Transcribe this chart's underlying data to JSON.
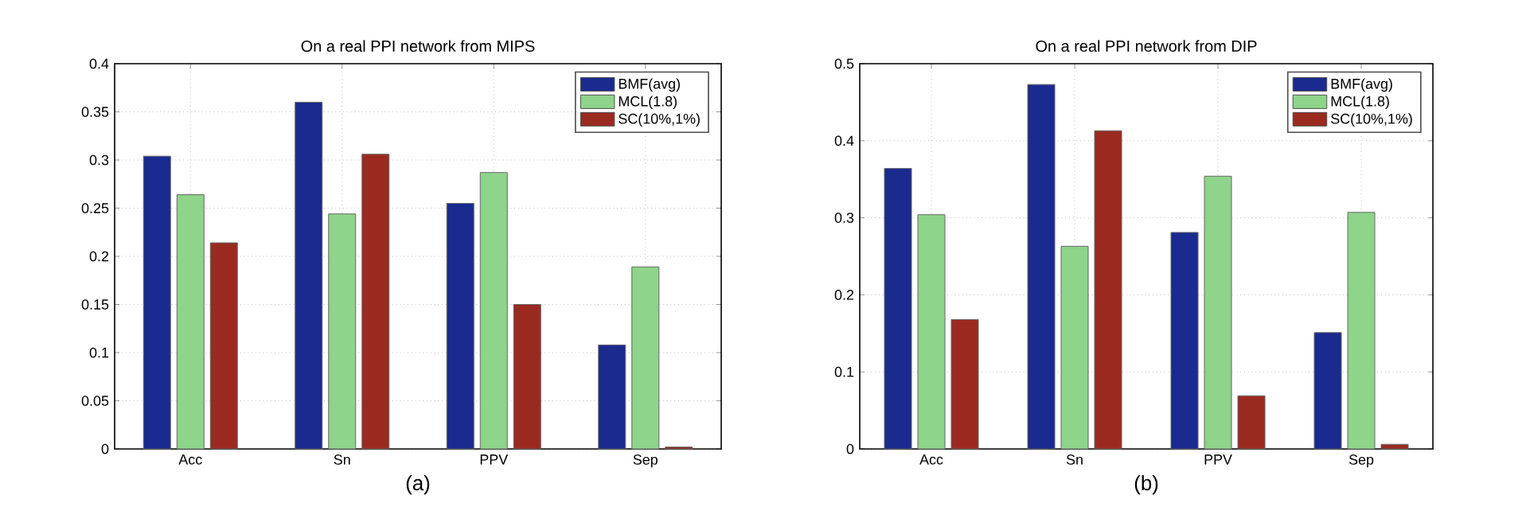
{
  "chart_data": [
    {
      "type": "bar",
      "title": "On a real PPI network from MIPS",
      "categories": [
        "Acc",
        "Sn",
        "PPV",
        "Sep"
      ],
      "series": [
        {
          "name": "BMF(avg)",
          "color": "#1b2a8e",
          "values": [
            0.304,
            0.36,
            0.255,
            0.108
          ]
        },
        {
          "name": "MCL(1.8)",
          "color": "#8ed48a",
          "values": [
            0.264,
            0.244,
            0.287,
            0.189
          ]
        },
        {
          "name": "SC(10%,1%)",
          "color": "#9a2a20",
          "values": [
            0.214,
            0.306,
            0.15,
            0.002
          ]
        }
      ],
      "ylim": [
        0,
        0.4
      ],
      "yticks": [
        0,
        0.05,
        0.1,
        0.15,
        0.2,
        0.25,
        0.3,
        0.35,
        0.4
      ],
      "grid": true,
      "legend": "top right",
      "annotations": [
        "(a)"
      ]
    },
    {
      "type": "bar",
      "title": "On a real PPI network from DIP",
      "categories": [
        "Acc",
        "Sn",
        "PPV",
        "Sep"
      ],
      "series": [
        {
          "name": "BMF(avg)",
          "color": "#1b2a8e",
          "values": [
            0.364,
            0.473,
            0.281,
            0.151
          ]
        },
        {
          "name": "MCL(1.8)",
          "color": "#8ed48a",
          "values": [
            0.304,
            0.263,
            0.354,
            0.307
          ]
        },
        {
          "name": "SC(10%,1%)",
          "color": "#9a2a20",
          "values": [
            0.168,
            0.413,
            0.069,
            0.006
          ]
        }
      ],
      "ylim": [
        0,
        0.5
      ],
      "yticks": [
        0,
        0.1,
        0.2,
        0.3,
        0.4,
        0.5
      ],
      "grid": true,
      "legend": "top right",
      "annotations": [
        "(b)"
      ]
    }
  ]
}
